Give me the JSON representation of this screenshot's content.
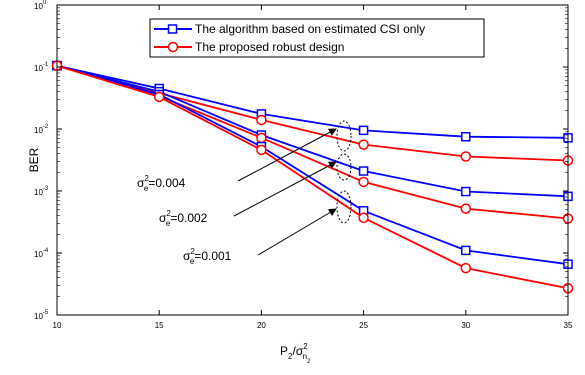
{
  "chart_data": {
    "type": "line",
    "xlabel": "P2/σn2",
    "ylabel": "BER",
    "x_scale": "linear",
    "y_scale": "log",
    "xlim": [
      10,
      35
    ],
    "ylim": [
      1e-05,
      1
    ],
    "x": [
      10,
      15,
      20,
      25,
      30,
      35
    ],
    "grid": false,
    "legend_position": "top-right",
    "y_tick_labels": [
      {
        "base": "10",
        "exp": "0"
      },
      {
        "base": "10",
        "exp": "-1"
      },
      {
        "base": "10",
        "exp": "-2"
      },
      {
        "base": "10",
        "exp": "-3"
      },
      {
        "base": "10",
        "exp": "-4"
      },
      {
        "base": "10",
        "exp": "-5"
      }
    ],
    "x_tick_labels": [
      "10",
      "15",
      "20",
      "25",
      "30",
      "35"
    ],
    "legend": [
      {
        "label": "The algorithm based on estimated CSI only",
        "color": "#0000ff",
        "marker": "square"
      },
      {
        "label": "The proposed robust design",
        "color": "#ff0000",
        "marker": "circle"
      }
    ],
    "series": [
      {
        "group": "σe2=0.004",
        "method": "The algorithm based on estimated CSI only",
        "color": "#0000ff",
        "marker": "square",
        "values": [
          0.105,
          0.045,
          0.0175,
          0.0095,
          0.0075,
          0.0072
        ]
      },
      {
        "group": "σe2=0.004",
        "method": "The proposed robust design",
        "color": "#ff0000",
        "marker": "circle",
        "values": [
          0.105,
          0.038,
          0.014,
          0.0056,
          0.0036,
          0.0031
        ]
      },
      {
        "group": "σe2=0.002",
        "method": "The algorithm based on estimated CSI only",
        "color": "#0000ff",
        "marker": "square",
        "values": [
          0.105,
          0.04,
          0.008,
          0.0021,
          0.00098,
          0.00082
        ]
      },
      {
        "group": "σe2=0.002",
        "method": "The proposed robust design",
        "color": "#ff0000",
        "marker": "circle",
        "values": [
          0.105,
          0.034,
          0.0072,
          0.0014,
          0.00052,
          0.00036
        ]
      },
      {
        "group": "σe2=0.001",
        "method": "The algorithm based on estimated CSI only",
        "color": "#0000ff",
        "marker": "square",
        "values": [
          0.105,
          0.036,
          0.0052,
          0.00048,
          0.00011,
          6.6e-05
        ]
      },
      {
        "group": "σe2=0.001",
        "method": "The proposed robust design",
        "color": "#ff0000",
        "marker": "circle",
        "values": [
          0.105,
          0.033,
          0.0046,
          0.00037,
          5.7e-05,
          2.7e-05
        ]
      }
    ],
    "annotations": [
      {
        "base": "σ",
        "sup": "2",
        "sub": "e",
        "value": "=0.004"
      },
      {
        "base": "σ",
        "sup": "2",
        "sub": "e",
        "value": "=0.002"
      },
      {
        "base": "σ",
        "sup": "2",
        "sub": "e",
        "value": "=0.001"
      }
    ],
    "axis_labels": {
      "x": {
        "p": "P",
        "p_sub": "2",
        "slash": "/",
        "sigma": "σ",
        "n": "n",
        "two": "2",
        "sup": "2"
      },
      "y": "BER"
    }
  }
}
